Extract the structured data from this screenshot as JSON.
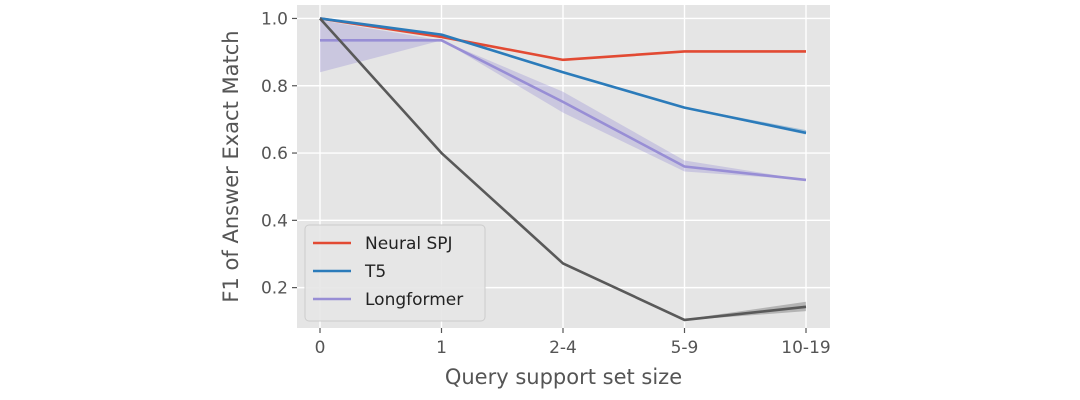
{
  "chart_data": {
    "type": "line",
    "categories": [
      "0",
      "1",
      "2-4",
      "5-9",
      "10-19"
    ],
    "xlabel": "Query support set size",
    "ylabel": "F1 of Answer Exact Match",
    "ylim": [
      0.08,
      1.04
    ],
    "yticks": [
      0.2,
      0.4,
      0.6,
      0.8,
      1.0
    ],
    "ytick_labels": [
      "0.2",
      "0.4",
      "0.6",
      "0.8",
      "1.0"
    ],
    "grid": true,
    "legend_position": "lower-left",
    "series": [
      {
        "name": "Neural SPJ",
        "color": "#e24a33",
        "values": [
          1.0,
          0.945,
          0.877,
          0.902,
          0.902
        ],
        "lower": [
          1.0,
          0.945,
          0.877,
          0.902,
          0.902
        ],
        "upper": [
          1.0,
          0.945,
          0.877,
          0.902,
          0.902
        ]
      },
      {
        "name": "T5",
        "color": "#2b7bba",
        "values": [
          1.0,
          0.952,
          0.84,
          0.735,
          0.66
        ],
        "lower": [
          1.0,
          0.952,
          0.84,
          0.733,
          0.655
        ],
        "upper": [
          1.0,
          0.952,
          0.84,
          0.737,
          0.668
        ]
      },
      {
        "name": "Longformer",
        "color": "#988ed5",
        "values": [
          0.935,
          0.935,
          0.752,
          0.56,
          0.52
        ],
        "lower": [
          0.84,
          0.935,
          0.72,
          0.545,
          0.52
        ],
        "upper": [
          0.995,
          0.935,
          0.782,
          0.578,
          0.52
        ]
      },
      {
        "name": "",
        "color": "#595959",
        "values": [
          1.0,
          0.6,
          0.272,
          0.104,
          0.143
        ],
        "lower": [
          1.0,
          0.6,
          0.272,
          0.103,
          0.13
        ],
        "upper": [
          1.0,
          0.6,
          0.272,
          0.106,
          0.158
        ]
      }
    ]
  }
}
